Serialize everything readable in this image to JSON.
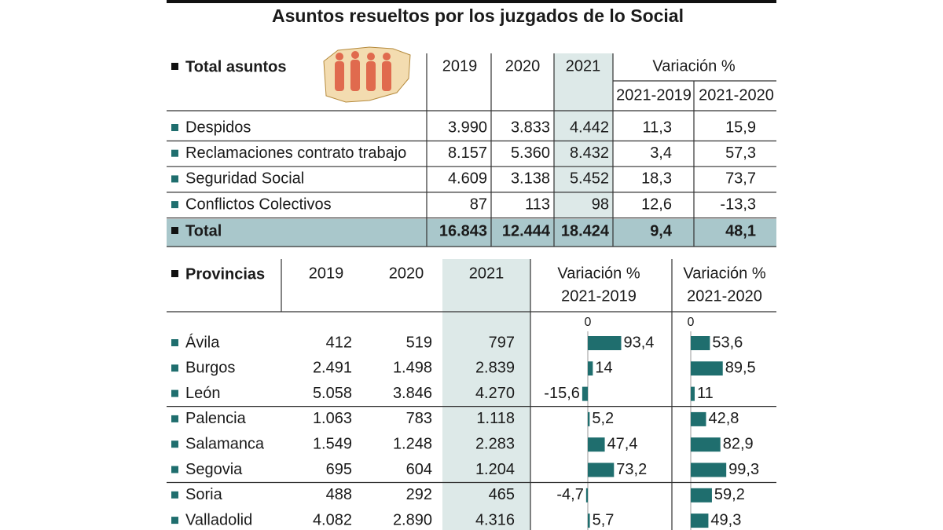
{
  "title": "Asuntos resueltos por los juzgados de lo Social",
  "table1": {
    "header": "Total asuntos",
    "columns": [
      "2019",
      "2020",
      "2021"
    ],
    "variation": "Variación %",
    "subcolumns": [
      "2021-2019",
      "2021-2020"
    ],
    "rows": [
      [
        "Despidos",
        "3.990",
        "3.833",
        "4.442",
        "11,3",
        "15,9"
      ],
      [
        "Reclamaciones contrato trabajo",
        "8.157",
        "5.360",
        "8.432",
        "3,4",
        "57,3"
      ],
      [
        "Seguridad Social",
        "4.609",
        "3.138",
        "5.452",
        "18,3",
        "73,7"
      ],
      [
        "Conflictos Colectivos",
        "87",
        "113",
        "98",
        "12,6",
        "-13,3"
      ]
    ],
    "total": [
      "Total",
      "16.843",
      "12.444",
      "18.424",
      "9,4",
      "48,1"
    ]
  },
  "table2": {
    "header": "Provincias",
    "columns": [
      "2019",
      "2020",
      "2021"
    ],
    "variation_headers": [
      [
        "Variación %",
        "2021-2019"
      ],
      [
        "Variación %",
        "2021-2020"
      ]
    ],
    "rows": [
      [
        "Ávila",
        "412",
        "519",
        "797"
      ],
      [
        "Burgos",
        "2.491",
        "1.498",
        "2.839"
      ],
      [
        "León",
        "5.058",
        "3.846",
        "4.270"
      ],
      [
        "Palencia",
        "1.063",
        "783",
        "1.118"
      ],
      [
        "Salamanca",
        "1.549",
        "1.248",
        "2.283"
      ],
      [
        "Segovia",
        "695",
        "604",
        "1.204"
      ],
      [
        "Soria",
        "488",
        "292",
        "465"
      ],
      [
        "Valladolid",
        "4.082",
        "2.890",
        "4.316"
      ]
    ],
    "charts": [
      {
        "type": "bar",
        "ticks": [
          0
        ],
        "color": "#1f6e6e",
        "values": [
          93.4,
          14,
          -15.6,
          5.2,
          47.4,
          73.2,
          -4.7,
          5.7
        ],
        "value_labels": [
          "93,4",
          "14",
          "-15,6",
          "5,2",
          "47,4",
          "73,2",
          "-4,7",
          "5,7"
        ]
      },
      {
        "type": "bar",
        "ticks": [
          0
        ],
        "color": "#1f6e6e",
        "values": [
          53.6,
          89.5,
          11,
          42.8,
          82.9,
          99.3,
          59.2,
          49.3
        ],
        "value_labels": [
          "53,6",
          "89,5",
          "11",
          "42,8",
          "82,9",
          "99,3",
          "59,2",
          "49,3"
        ]
      }
    ]
  }
}
